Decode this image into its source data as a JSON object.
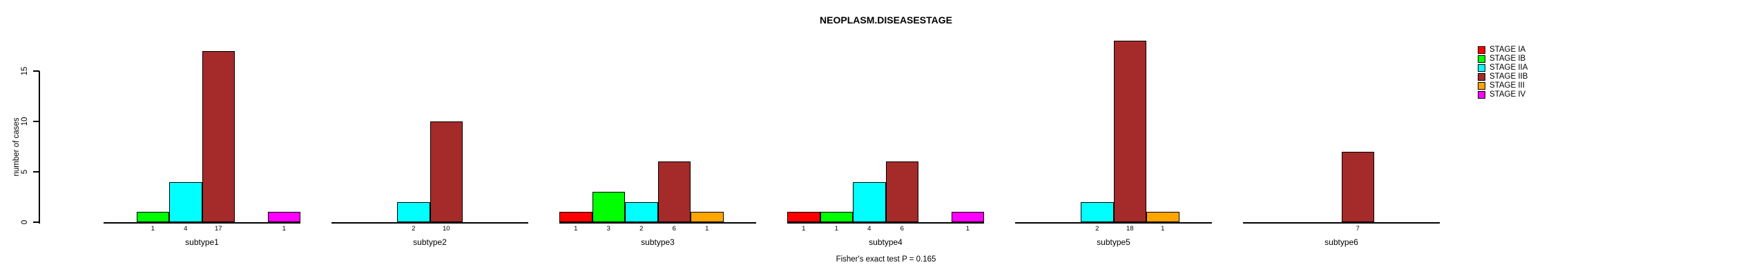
{
  "chart_data": {
    "type": "bar",
    "title": "NEOPLASM.DISEASESTAGE",
    "ylabel": "number of cases",
    "xlabel": "",
    "caption": "Fisher's exact test P = 0.165",
    "yticks": [
      0,
      5,
      10,
      15
    ],
    "ylim": [
      0,
      18
    ],
    "grid": false,
    "legend_position": "top-right",
    "bar_value_labels_shown": true,
    "categories": [
      "subtype1",
      "subtype2",
      "subtype3",
      "subtype4",
      "subtype5",
      "subtype6"
    ],
    "series": [
      {
        "name": "STAGE IA",
        "color": "#FF0000",
        "values": [
          0,
          0,
          1,
          1,
          0,
          0
        ]
      },
      {
        "name": "STAGE IB",
        "color": "#00FF00",
        "values": [
          1,
          0,
          3,
          1,
          0,
          0
        ]
      },
      {
        "name": "STAGE IIA",
        "color": "#00FFFF",
        "values": [
          4,
          2,
          2,
          4,
          2,
          0
        ]
      },
      {
        "name": "STAGE IIB",
        "color": "#A52A2A",
        "values": [
          17,
          10,
          6,
          6,
          18,
          7
        ]
      },
      {
        "name": "STAGE III",
        "color": "#FFA500",
        "values": [
          0,
          0,
          1,
          0,
          1,
          0
        ]
      },
      {
        "name": "STAGE IV",
        "color": "#FF00FF",
        "values": [
          1,
          0,
          0,
          1,
          0,
          0
        ]
      }
    ]
  }
}
